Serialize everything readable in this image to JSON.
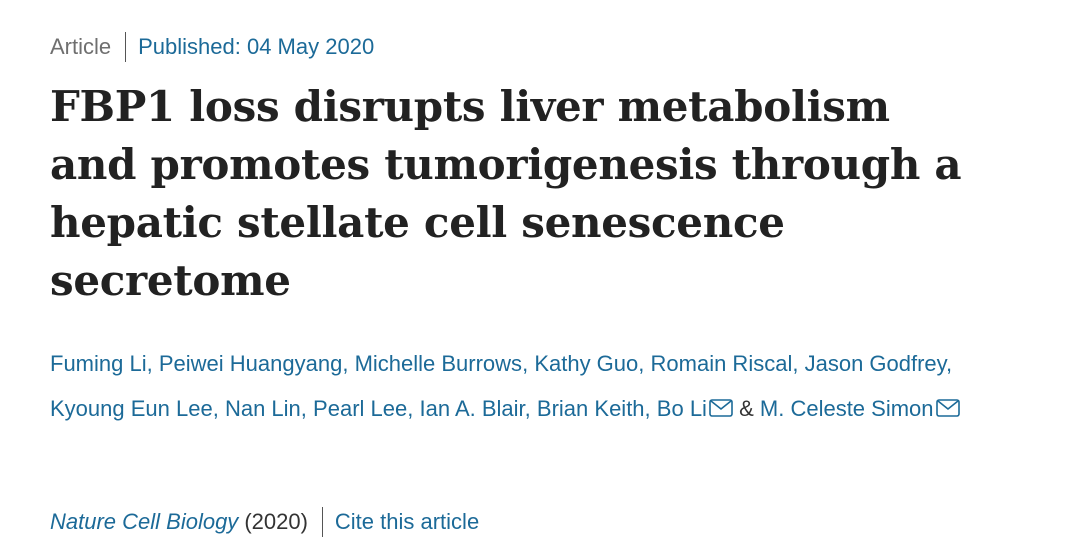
{
  "header": {
    "article_type": "Article",
    "published": "Published: 04 May 2020"
  },
  "title": "FBP1 loss disrupts liver metabolism and promotes tumorigenesis through a hepatic stellate cell senescence secretome",
  "authors": {
    "names": [
      "Fuming Li",
      "Peiwei Huangyang",
      "Michelle Burrows",
      "Kathy Guo",
      "Romain Riscal",
      "Jason Godfrey",
      "Kyoung Eun Lee",
      "Nan Lin",
      "Pearl Lee",
      "Ian A. Blair",
      "Brian Keith",
      "Bo Li",
      "M. Celeste Simon"
    ],
    "separator": ",",
    "conjunction": "&"
  },
  "citation": {
    "journal": "Nature Cell Biology",
    "year": "(2020)",
    "cite_link": "Cite this article"
  }
}
